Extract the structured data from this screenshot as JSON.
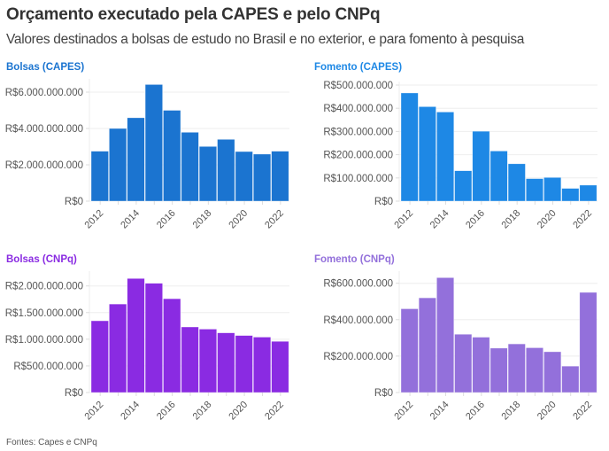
{
  "header": {
    "title": "Orçamento executado pela CAPES e pelo CNPq",
    "subtitle": "Valores destinados a bolsas de estudo no Brasil e no exterior, e para fomento à pesquisa"
  },
  "footer": {
    "source": "Fontes: Capes e CNPq"
  },
  "chart_data": [
    {
      "type": "bar",
      "title": "Bolsas (CAPES)",
      "color": "#1b74d0",
      "categories": [
        "2012",
        "2013",
        "2014",
        "2015",
        "2016",
        "2017",
        "2018",
        "2019",
        "2020",
        "2021",
        "2022"
      ],
      "x_tick_labels": [
        "2012",
        "2014",
        "2016",
        "2018",
        "2020",
        "2022"
      ],
      "values": [
        2750000000,
        4000000000,
        4590000000,
        6420000000,
        5000000000,
        3790000000,
        3010000000,
        3400000000,
        2730000000,
        2590000000,
        2750000000
      ],
      "y_ticks": [
        0,
        2000000000,
        4000000000,
        6000000000
      ],
      "y_tick_labels": [
        "R$0",
        "R$2.000.000.000",
        "R$4.000.000.000",
        "R$6.000.000.000"
      ],
      "ylim": [
        0,
        6500000000
      ],
      "xlabel": "",
      "ylabel": "",
      "grid": true
    },
    {
      "type": "bar",
      "title": "Fomento (CAPES)",
      "color": "#1e88e5",
      "categories": [
        "2012",
        "2013",
        "2014",
        "2015",
        "2016",
        "2017",
        "2018",
        "2019",
        "2020",
        "2021",
        "2022"
      ],
      "x_tick_labels": [
        "2012",
        "2014",
        "2016",
        "2018",
        "2020",
        "2022"
      ],
      "values": [
        466000000,
        407000000,
        384000000,
        131000000,
        301000000,
        216000000,
        161000000,
        97000000,
        102000000,
        55000000,
        69000000
      ],
      "y_ticks": [
        0,
        100000000,
        200000000,
        300000000,
        400000000,
        500000000
      ],
      "y_tick_labels": [
        "R$0",
        "R$100.000.000",
        "R$200.000.000",
        "R$300.000.000",
        "R$400.000.000",
        "R$500.000.000"
      ],
      "ylim": [
        0,
        500000000
      ],
      "xlabel": "",
      "ylabel": "",
      "grid": true
    },
    {
      "type": "bar",
      "title": "Bolsas (CNPq)",
      "color": "#8a2be2",
      "categories": [
        "2012",
        "2013",
        "2014",
        "2015",
        "2016",
        "2017",
        "2018",
        "2019",
        "2020",
        "2021",
        "2022"
      ],
      "x_tick_labels": [
        "2012",
        "2014",
        "2016",
        "2018",
        "2020",
        "2022"
      ],
      "values": [
        1346000000,
        1660000000,
        2140000000,
        2050000000,
        1760000000,
        1230000000,
        1190000000,
        1120000000,
        1070000000,
        1040000000,
        960000000
      ],
      "y_ticks": [
        0,
        500000000,
        1000000000,
        1500000000,
        2000000000
      ],
      "y_tick_labels": [
        "R$0",
        "R$500.000.000",
        "R$1.000.000.000",
        "R$1.500.000.000",
        "R$2.000.000.000"
      ],
      "ylim": [
        0,
        2200000000
      ],
      "xlabel": "",
      "ylabel": "",
      "grid": true
    },
    {
      "type": "bar",
      "title": "Fomento (CNPq)",
      "color": "#9370db",
      "categories": [
        "2012",
        "2013",
        "2014",
        "2015",
        "2016",
        "2017",
        "2018",
        "2019",
        "2020",
        "2021",
        "2022"
      ],
      "x_tick_labels": [
        "2012",
        "2014",
        "2016",
        "2018",
        "2020",
        "2022"
      ],
      "values": [
        460000000,
        520000000,
        631000000,
        320000000,
        304000000,
        244000000,
        267000000,
        246000000,
        224000000,
        145000000,
        550000000
      ],
      "y_ticks": [
        0,
        200000000,
        400000000,
        600000000
      ],
      "y_tick_labels": [
        "R$0",
        "R$200.000.000",
        "R$400.000.000",
        "R$600.000.000"
      ],
      "ylim": [
        0,
        640000000
      ],
      "xlabel": "",
      "ylabel": "",
      "grid": true
    }
  ]
}
